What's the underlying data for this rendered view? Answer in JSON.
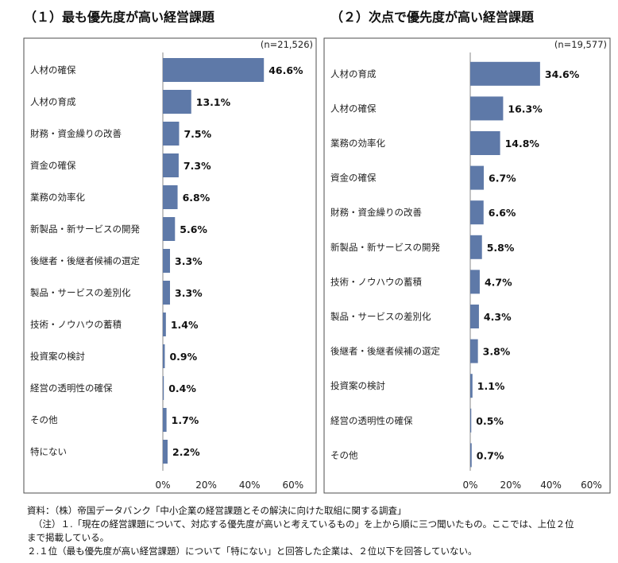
{
  "titles": {
    "left": "（１）最も優先度が高い経営課題",
    "right": "（２）次点で優先度が高い経営課題"
  },
  "colors": {
    "bar": "#5e79a8",
    "border": "#4d4d4d",
    "grid": "#d9d9d9"
  },
  "chart_data": [
    {
      "type": "bar",
      "orientation": "horizontal",
      "title": "（１）最も優先度が高い経営課題",
      "n_label": "(n=21,526)",
      "categories": [
        "人材の確保",
        "人材の育成",
        "財務・資金繰りの改善",
        "資金の確保",
        "業務の効率化",
        "新製品・新サービスの開発",
        "後継者・後継者候補の選定",
        "製品・サービスの差別化",
        "技術・ノウハウの蓄積",
        "投資案の検討",
        "経営の透明性の確保",
        "その他",
        "特にない"
      ],
      "values": [
        46.6,
        13.1,
        7.5,
        7.3,
        6.8,
        5.6,
        3.3,
        3.3,
        1.4,
        0.9,
        0.4,
        1.7,
        2.2
      ],
      "value_labels": [
        "46.6%",
        "13.1%",
        "7.5%",
        "7.3%",
        "6.8%",
        "5.6%",
        "3.3%",
        "3.3%",
        "1.4%",
        "0.9%",
        "0.4%",
        "1.7%",
        "2.2%"
      ],
      "xlim": [
        0,
        70
      ],
      "ticks": [
        0,
        20,
        40,
        60
      ],
      "tick_labels": [
        "0%",
        "20%",
        "40%",
        "60%"
      ]
    },
    {
      "type": "bar",
      "orientation": "horizontal",
      "title": "（２）次点で優先度が高い経営課題",
      "n_label": "(n=19,577)",
      "categories": [
        "人材の育成",
        "人材の確保",
        "業務の効率化",
        "資金の確保",
        "財務・資金繰りの改善",
        "新製品・新サービスの開発",
        "技術・ノウハウの蓄積",
        "製品・サービスの差別化",
        "後継者・後継者候補の選定",
        "投資案の検討",
        "経営の透明性の確保",
        "その他"
      ],
      "values": [
        34.6,
        16.3,
        14.8,
        6.7,
        6.6,
        5.8,
        4.7,
        4.3,
        3.8,
        1.1,
        0.5,
        0.7
      ],
      "value_labels": [
        "34.6%",
        "16.3%",
        "14.8%",
        "6.7%",
        "6.6%",
        "5.8%",
        "4.7%",
        "4.3%",
        "3.8%",
        "1.1%",
        "0.5%",
        "0.7%"
      ],
      "xlim": [
        0,
        70
      ],
      "ticks": [
        0,
        20,
        40,
        60
      ],
      "tick_labels": [
        "0%",
        "20%",
        "40%",
        "60%"
      ]
    }
  ],
  "notes": {
    "source": "資料：（株）帝国データバンク「中小企業の経営課題とその解決に向けた取組に関する調査」",
    "note1_a": "（注）１.「現在の経営課題について、対応する優先度が高いと考えているもの」を上から順に三つ聞いたもの。ここでは、上位２位",
    "note1_b": "まで掲載している。",
    "note2": "２.１位（最も優先度が高い経営課題）について「特にない」と回答した企業は、２位以下を回答していない。"
  }
}
